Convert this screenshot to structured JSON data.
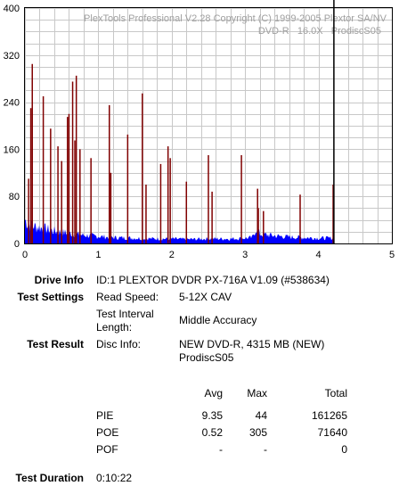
{
  "chart_data": {
    "type": "bar",
    "watermark_line1": "PlexTools Professional V2.28 Copyright (C) 1999-2005 Plextor SA/NV",
    "watermark_line2": "DVD-R   16.0X   ProdiscS05",
    "xlim": [
      0,
      5
    ],
    "ylim": [
      0,
      400
    ],
    "x_ticks": [
      "0",
      "1",
      "2",
      "3",
      "4",
      "5"
    ],
    "y_ticks": [
      "0",
      "80",
      "160",
      "240",
      "320",
      "400"
    ],
    "grid": true,
    "end_marker_x": 4.21,
    "series": [
      {
        "kind": "PIE",
        "color": "#0000ff",
        "profile": [
          [
            0.0,
            40
          ],
          [
            0.05,
            33
          ],
          [
            0.1,
            30
          ],
          [
            0.2,
            27
          ],
          [
            0.3,
            24
          ],
          [
            0.4,
            21
          ],
          [
            0.5,
            19
          ],
          [
            0.6,
            17
          ],
          [
            0.8,
            14
          ],
          [
            1.0,
            12
          ],
          [
            1.2,
            10
          ],
          [
            1.5,
            9
          ],
          [
            1.8,
            8
          ],
          [
            2.0,
            8
          ],
          [
            2.2,
            7
          ],
          [
            2.5,
            8
          ],
          [
            2.8,
            8
          ],
          [
            3.0,
            9
          ],
          [
            3.1,
            10
          ],
          [
            3.15,
            26
          ],
          [
            3.2,
            16
          ],
          [
            3.4,
            13
          ],
          [
            3.6,
            11
          ],
          [
            3.8,
            10
          ],
          [
            4.0,
            9
          ],
          [
            4.2,
            9
          ]
        ]
      },
      {
        "kind": "POE",
        "color": "#800000",
        "spikes": [
          [
            0.05,
            110
          ],
          [
            0.08,
            230
          ],
          [
            0.1,
            305
          ],
          [
            0.25,
            250
          ],
          [
            0.35,
            195
          ],
          [
            0.45,
            165
          ],
          [
            0.5,
            140
          ],
          [
            0.58,
            215
          ],
          [
            0.6,
            220
          ],
          [
            0.65,
            275
          ],
          [
            0.68,
            175
          ],
          [
            0.7,
            285
          ],
          [
            0.75,
            160
          ],
          [
            0.9,
            145
          ],
          [
            1.15,
            235
          ],
          [
            1.17,
            120
          ],
          [
            1.4,
            185
          ],
          [
            1.6,
            255
          ],
          [
            1.65,
            100
          ],
          [
            1.85,
            135
          ],
          [
            1.95,
            165
          ],
          [
            1.98,
            145
          ],
          [
            2.2,
            105
          ],
          [
            2.5,
            150
          ],
          [
            2.55,
            88
          ],
          [
            2.95,
            150
          ],
          [
            3.17,
            93
          ],
          [
            3.18,
            60
          ],
          [
            3.25,
            55
          ],
          [
            3.75,
            83
          ],
          [
            4.2,
            100
          ]
        ]
      }
    ]
  },
  "info": {
    "drive_info_label": "Drive Info",
    "drive_info_value": "ID:1 PLEXTOR DVDR PX-716A V1.09 (#538634)",
    "test_settings_label": "Test Settings",
    "read_speed_label": "Read Speed:",
    "read_speed_value": "5-12X CAV",
    "interval_label_line1": "Test Interval",
    "interval_label_line2": "Length:",
    "interval_value": "Middle Accuracy",
    "test_result_label": "Test Result",
    "disc_info_label": "Disc Info:",
    "disc_info_line1": "NEW DVD-R, 4315 MB (NEW)",
    "disc_info_line2": "ProdiscS05",
    "test_duration_label": "Test Duration",
    "test_duration_value": "0:10:22"
  },
  "stats": {
    "headers": [
      "",
      "Avg",
      "Max",
      "Total"
    ],
    "rows": [
      {
        "name": "PIE",
        "avg": "9.35",
        "max": "44",
        "total": "161265"
      },
      {
        "name": "POE",
        "avg": "0.52",
        "max": "305",
        "total": "71640"
      },
      {
        "name": "POF",
        "avg": "-",
        "max": "-",
        "total": "0"
      }
    ]
  }
}
